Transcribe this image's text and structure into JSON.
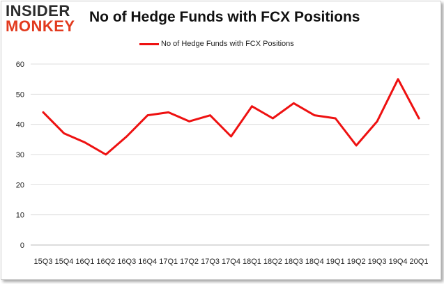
{
  "brand": {
    "logo_top": "INSIDER",
    "logo_bottom": "MONKEY"
  },
  "chart_data": {
    "type": "line",
    "title": "No of Hedge Funds with FCX Positions",
    "xlabel": "",
    "ylabel": "",
    "legend_position": "top",
    "grid": true,
    "ylim": [
      0,
      60
    ],
    "yticks": [
      0,
      10,
      20,
      30,
      40,
      50,
      60
    ],
    "categories": [
      "15Q3",
      "15Q4",
      "16Q1",
      "16Q2",
      "16Q3",
      "16Q4",
      "17Q1",
      "17Q2",
      "17Q3",
      "17Q4",
      "18Q1",
      "18Q2",
      "18Q3",
      "18Q4",
      "19Q1",
      "19Q2",
      "19Q3",
      "19Q4",
      "20Q1"
    ],
    "series": [
      {
        "name": "No of Hedge Funds with FCX Positions",
        "color": "#ee1111",
        "values": [
          44,
          37,
          34,
          30,
          36,
          43,
          44,
          41,
          43,
          36,
          46,
          42,
          47,
          43,
          42,
          33,
          41,
          55,
          42
        ]
      }
    ]
  }
}
